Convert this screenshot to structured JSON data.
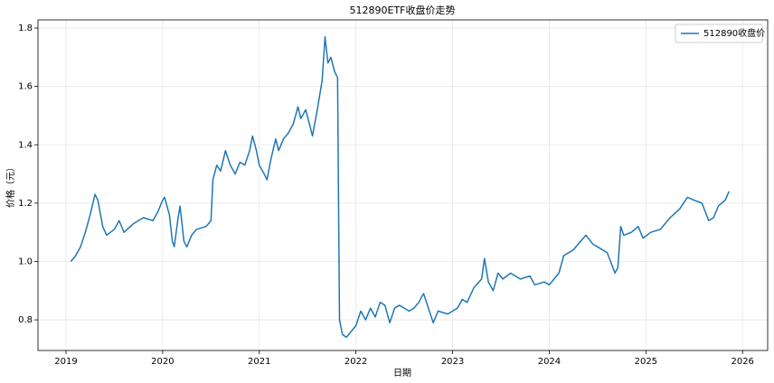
{
  "chart_data": {
    "type": "line",
    "title": "512890ETF收盘价走势",
    "x_label": "日期",
    "y_label": "价格（元）",
    "x": [
      2019.05,
      2019.1,
      2019.15,
      2019.2,
      2019.25,
      2019.3,
      2019.33,
      2019.38,
      2019.42,
      2019.5,
      2019.55,
      2019.6,
      2019.7,
      2019.8,
      2019.9,
      2019.95,
      2020.0,
      2020.02,
      2020.07,
      2020.1,
      2020.12,
      2020.16,
      2020.18,
      2020.22,
      2020.25,
      2020.3,
      2020.35,
      2020.45,
      2020.5,
      2020.52,
      2020.56,
      2020.6,
      2020.65,
      2020.7,
      2020.75,
      2020.8,
      2020.85,
      2020.9,
      2020.93,
      2020.97,
      2021.0,
      2021.05,
      2021.08,
      2021.12,
      2021.17,
      2021.2,
      2021.25,
      2021.3,
      2021.35,
      2021.4,
      2021.43,
      2021.48,
      2021.52,
      2021.55,
      2021.6,
      2021.65,
      2021.68,
      2021.71,
      2021.74,
      2021.78,
      2021.81,
      2021.82,
      2021.83,
      2021.86,
      2021.9,
      2021.95,
      2022.0,
      2022.05,
      2022.1,
      2022.15,
      2022.2,
      2022.25,
      2022.3,
      2022.35,
      2022.4,
      2022.45,
      2022.55,
      2022.6,
      2022.65,
      2022.7,
      2022.75,
      2022.8,
      2022.85,
      2022.95,
      2023.05,
      2023.1,
      2023.15,
      2023.22,
      2023.3,
      2023.33,
      2023.37,
      2023.42,
      2023.47,
      2023.52,
      2023.6,
      2023.7,
      2023.8,
      2023.85,
      2023.95,
      2024.0,
      2024.05,
      2024.1,
      2024.15,
      2024.25,
      2024.3,
      2024.38,
      2024.45,
      2024.5,
      2024.6,
      2024.68,
      2024.71,
      2024.74,
      2024.77,
      2024.85,
      2024.92,
      2024.97,
      2025.05,
      2025.15,
      2025.25,
      2025.35,
      2025.43,
      2025.5,
      2025.58,
      2025.65,
      2025.7,
      2025.75,
      2025.82,
      2025.86
    ],
    "series": [
      {
        "name": "512890收盘价",
        "color": "#1f77b4",
        "values": [
          1.0,
          1.02,
          1.05,
          1.1,
          1.16,
          1.23,
          1.21,
          1.12,
          1.09,
          1.11,
          1.14,
          1.1,
          1.13,
          1.15,
          1.14,
          1.17,
          1.21,
          1.22,
          1.16,
          1.07,
          1.05,
          1.15,
          1.19,
          1.07,
          1.05,
          1.09,
          1.11,
          1.12,
          1.14,
          1.28,
          1.33,
          1.31,
          1.38,
          1.33,
          1.3,
          1.34,
          1.33,
          1.38,
          1.43,
          1.38,
          1.33,
          1.3,
          1.28,
          1.35,
          1.42,
          1.38,
          1.42,
          1.44,
          1.47,
          1.53,
          1.49,
          1.52,
          1.47,
          1.43,
          1.52,
          1.62,
          1.77,
          1.68,
          1.7,
          1.65,
          1.63,
          1.2,
          0.8,
          0.75,
          0.74,
          0.76,
          0.78,
          0.83,
          0.8,
          0.84,
          0.81,
          0.86,
          0.85,
          0.79,
          0.84,
          0.85,
          0.83,
          0.84,
          0.86,
          0.89,
          0.84,
          0.79,
          0.83,
          0.82,
          0.84,
          0.87,
          0.86,
          0.91,
          0.94,
          1.01,
          0.93,
          0.9,
          0.96,
          0.94,
          0.96,
          0.94,
          0.95,
          0.92,
          0.93,
          0.92,
          0.94,
          0.96,
          1.02,
          1.04,
          1.06,
          1.09,
          1.06,
          1.05,
          1.03,
          0.96,
          0.98,
          1.12,
          1.09,
          1.1,
          1.12,
          1.08,
          1.1,
          1.11,
          1.15,
          1.18,
          1.22,
          1.21,
          1.2,
          1.14,
          1.15,
          1.19,
          1.21,
          1.24
        ]
      }
    ],
    "xlim": [
      2018.71,
      2026.26
    ],
    "xticks": [
      2019,
      2020,
      2021,
      2022,
      2023,
      2024,
      2025,
      2026
    ],
    "ylim": [
      0.695,
      1.828
    ],
    "yticks": [
      0.8,
      {
        "value": 1,
        "label": "1.0"
      },
      1.2,
      1.4,
      1.6,
      1.8
    ],
    "grid": true,
    "legend": "upper right"
  }
}
